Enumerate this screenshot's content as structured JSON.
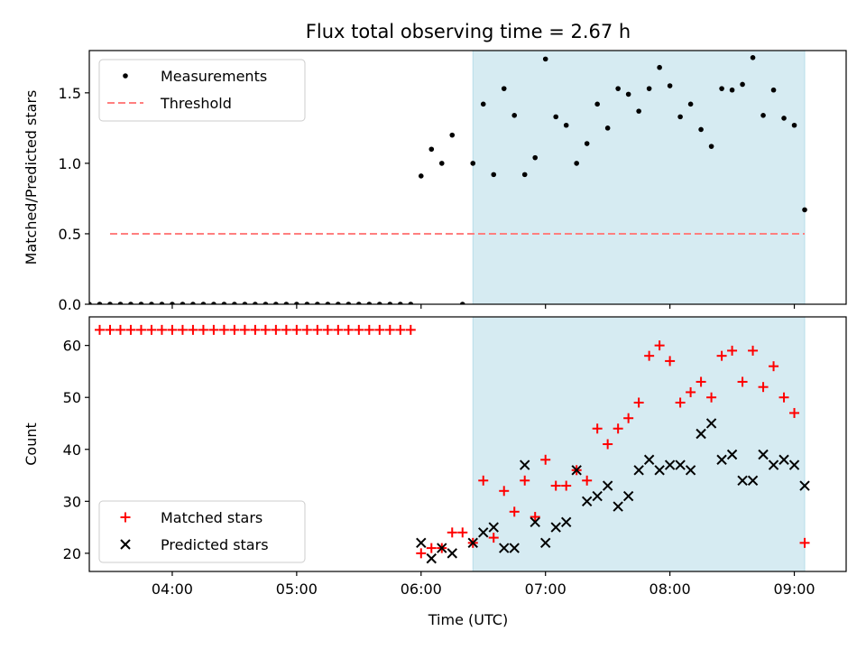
{
  "chart_data": {
    "title": "Flux total observing time = 2.67 h",
    "shaded_region": {
      "start": "06:25",
      "end": "09:05",
      "color": "#add8e6"
    },
    "xlabel": "Time (UTC)",
    "xlim": [
      "03:20",
      "09:25"
    ],
    "xticks": [
      "04:00",
      "05:00",
      "06:00",
      "07:00",
      "08:00",
      "09:00"
    ],
    "panels": [
      {
        "type": "scatter",
        "ylabel": "Matched/Predicted stars",
        "ylim": [
          0,
          1.8
        ],
        "yticks": [
          "0.0",
          "0.5",
          "1.0",
          "1.5"
        ],
        "legend": "upper-left",
        "series": [
          {
            "name": "Measurements",
            "marker": "dot",
            "color": "#000000",
            "x": [
              "03:20",
              "03:25",
              "03:30",
              "03:35",
              "03:40",
              "03:45",
              "03:50",
              "03:55",
              "04:00",
              "04:05",
              "04:10",
              "04:15",
              "04:20",
              "04:25",
              "04:30",
              "04:35",
              "04:40",
              "04:45",
              "04:50",
              "04:55",
              "05:00",
              "05:05",
              "05:10",
              "05:15",
              "05:20",
              "05:25",
              "05:30",
              "05:35",
              "05:40",
              "05:45",
              "05:50",
              "05:55",
              "06:00",
              "06:05",
              "06:10",
              "06:15",
              "06:20",
              "06:25",
              "06:30",
              "06:35",
              "06:40",
              "06:45",
              "06:50",
              "06:55",
              "07:00",
              "07:05",
              "07:10",
              "07:15",
              "07:20",
              "07:25",
              "07:30",
              "07:35",
              "07:40",
              "07:45",
              "07:50",
              "07:55",
              "08:00",
              "08:05",
              "08:10",
              "08:15",
              "08:20",
              "08:25",
              "08:30",
              "08:35",
              "08:40",
              "08:45",
              "08:50",
              "08:55",
              "09:00",
              "09:05"
            ],
            "y": [
              0,
              0,
              0,
              0,
              0,
              0,
              0,
              0,
              0,
              0,
              0,
              0,
              0,
              0,
              0,
              0,
              0,
              0,
              0,
              0,
              0,
              0,
              0,
              0,
              0,
              0,
              0,
              0,
              0,
              0,
              0,
              0,
              0.91,
              1.1,
              1.0,
              1.2,
              0,
              1.0,
              1.42,
              0.92,
              1.53,
              1.34,
              0.92,
              1.04,
              1.74,
              1.33,
              1.27,
              1.0,
              1.14,
              1.42,
              1.25,
              1.53,
              1.49,
              1.37,
              1.53,
              1.68,
              1.55,
              1.33,
              1.42,
              1.24,
              1.12,
              1.53,
              1.52,
              1.56,
              1.75,
              1.34,
              1.52,
              1.32,
              1.27,
              0.67
            ]
          },
          {
            "name": "Threshold",
            "marker": "dashed-line",
            "color": "#ff7f7f",
            "x": [
              "03:30",
              "09:05"
            ],
            "y": [
              0.5,
              0.5
            ]
          }
        ]
      },
      {
        "type": "scatter",
        "ylabel": "Count",
        "ylim": [
          16.5,
          65.5
        ],
        "yticks": [
          "20",
          "30",
          "40",
          "50",
          "60"
        ],
        "legend": "lower-left",
        "series": [
          {
            "name": "Matched stars",
            "marker": "plus",
            "color": "#ff0000",
            "x": [
              "03:25",
              "03:30",
              "03:35",
              "03:40",
              "03:45",
              "03:50",
              "03:55",
              "04:00",
              "04:05",
              "04:10",
              "04:15",
              "04:20",
              "04:25",
              "04:30",
              "04:35",
              "04:40",
              "04:45",
              "04:50",
              "04:55",
              "05:00",
              "05:05",
              "05:10",
              "05:15",
              "05:20",
              "05:25",
              "05:30",
              "05:35",
              "05:40",
              "05:45",
              "05:50",
              "05:55",
              "06:00",
              "06:05",
              "06:10",
              "06:15",
              "06:20",
              "06:25",
              "06:30",
              "06:35",
              "06:40",
              "06:45",
              "06:50",
              "06:55",
              "07:00",
              "07:05",
              "07:10",
              "07:15",
              "07:20",
              "07:25",
              "07:30",
              "07:35",
              "07:40",
              "07:45",
              "07:50",
              "07:55",
              "08:00",
              "08:05",
              "08:10",
              "08:15",
              "08:20",
              "08:25",
              "08:30",
              "08:35",
              "08:40",
              "08:45",
              "08:50",
              "08:55",
              "09:00",
              "09:05"
            ],
            "y": [
              63,
              63,
              63,
              63,
              63,
              63,
              63,
              63,
              63,
              63,
              63,
              63,
              63,
              63,
              63,
              63,
              63,
              63,
              63,
              63,
              63,
              63,
              63,
              63,
              63,
              63,
              63,
              63,
              63,
              63,
              63,
              20,
              21,
              21,
              24,
              24,
              22,
              34,
              23,
              32,
              28,
              34,
              27,
              38,
              33,
              33,
              36,
              34,
              44,
              41,
              44,
              46,
              49,
              58,
              60,
              57,
              49,
              51,
              53,
              50,
              58,
              59,
              53,
              59,
              52,
              56,
              50,
              47,
              22
            ]
          },
          {
            "name": "Predicted stars",
            "marker": "x",
            "color": "#000000",
            "x": [
              "06:00",
              "06:05",
              "06:10",
              "06:15",
              "06:25",
              "06:30",
              "06:35",
              "06:40",
              "06:45",
              "06:50",
              "06:55",
              "07:00",
              "07:05",
              "07:10",
              "07:15",
              "07:20",
              "07:25",
              "07:30",
              "07:35",
              "07:40",
              "07:45",
              "07:50",
              "07:55",
              "08:00",
              "08:05",
              "08:10",
              "08:15",
              "08:20",
              "08:25",
              "08:30",
              "08:35",
              "08:40",
              "08:45",
              "08:50",
              "08:55",
              "09:00",
              "09:05"
            ],
            "y": [
              22,
              19,
              21,
              20,
              22,
              24,
              25,
              21,
              21,
              37,
              26,
              22,
              25,
              26,
              36,
              30,
              31,
              33,
              29,
              31,
              36,
              38,
              36,
              37,
              37,
              36,
              43,
              45,
              38,
              39,
              34,
              34,
              39,
              37,
              38,
              37,
              33
            ]
          }
        ]
      }
    ]
  }
}
